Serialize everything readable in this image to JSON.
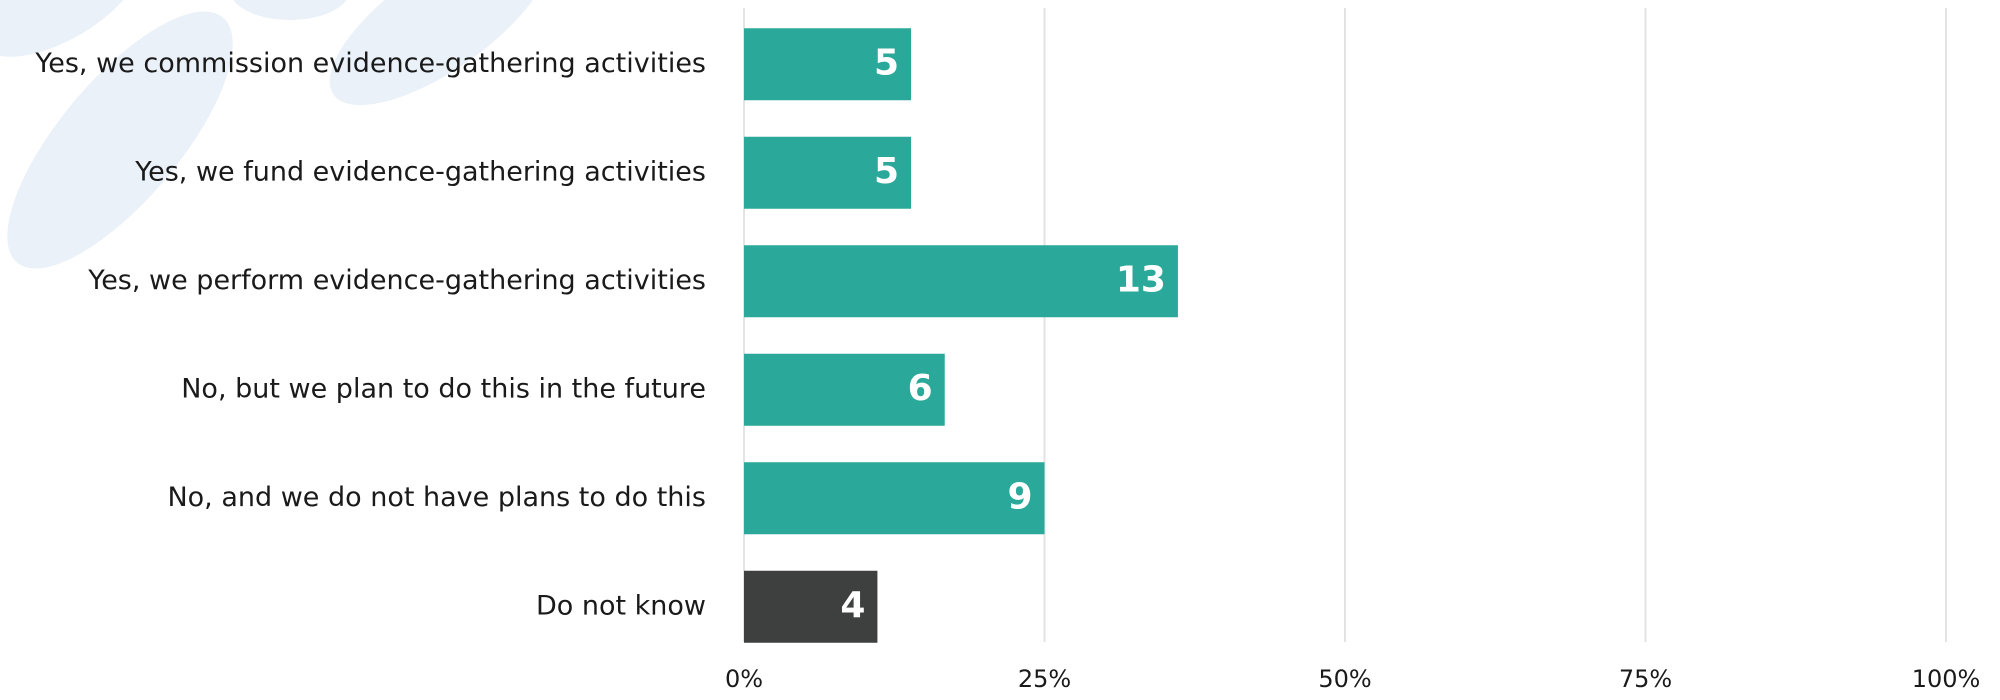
{
  "chart_data": {
    "type": "bar",
    "orientation": "horizontal",
    "categories": [
      "Yes, we commission evidence-gathering activities",
      "Yes, we fund evidence-gathering activities",
      "Yes, we perform evidence-gathering activities",
      "No, but we plan to do this in the future",
      "No, and we do not have plans to do this",
      "Do not know"
    ],
    "values": [
      13.9,
      13.9,
      36.1,
      16.7,
      25,
      11.1
    ],
    "counts": [
      5,
      5,
      13,
      6,
      9,
      4
    ],
    "colors": [
      "#2aa899",
      "#2aa899",
      "#2aa899",
      "#2aa899",
      "#2aa899",
      "#3e403f"
    ],
    "xlim": [
      0,
      100
    ],
    "xticks": [
      {
        "value": 0,
        "label": "0%"
      },
      {
        "value": 25,
        "label": "25%"
      },
      {
        "value": 50,
        "label": "50%"
      },
      {
        "value": 75,
        "label": "75%"
      },
      {
        "value": 100,
        "label": "100%"
      }
    ],
    "grid": true
  }
}
